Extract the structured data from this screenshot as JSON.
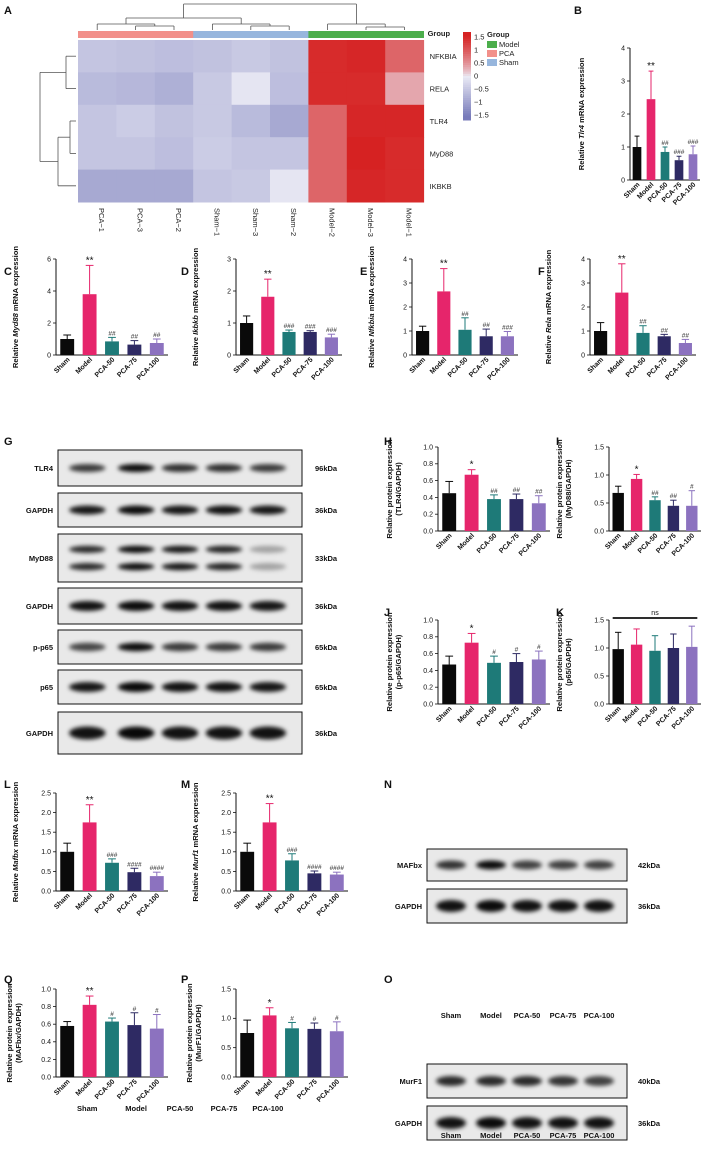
{
  "colors": {
    "sham": "#0a0a0a",
    "model": "#e6256b",
    "pca50": "#1e7a78",
    "pca75": "#2e2a63",
    "pca100": "#8c72bf",
    "hm_model": "#4cae4c",
    "hm_pca": "#f2908a",
    "hm_sham": "#97b6dd"
  },
  "chart_data": [
    {
      "panel": "A",
      "type": "heatmap",
      "columns": [
        "PCA−1",
        "PCA−3",
        "PCA−2",
        "Sham−1",
        "Sham−3",
        "Sham−2",
        "Model−2",
        "Model−3",
        "Model−1"
      ],
      "column_groups": [
        "PCA",
        "PCA",
        "PCA",
        "Sham",
        "Sham",
        "Sham",
        "Model",
        "Model",
        "Model"
      ],
      "rows": [
        "NFKBIA",
        "RELA",
        "TLR4",
        "MyD88",
        "IKBKB"
      ],
      "values": [
        [
          -0.55,
          -0.6,
          -0.65,
          -0.6,
          -0.5,
          -0.6,
          1.5,
          1.55,
          0.9
        ],
        [
          -0.7,
          -0.75,
          -0.85,
          -0.5,
          -0.1,
          -0.65,
          1.5,
          1.5,
          0.35
        ],
        [
          -0.55,
          -0.45,
          -0.6,
          -0.5,
          -0.7,
          -0.95,
          0.9,
          1.55,
          1.55
        ],
        [
          -0.55,
          -0.55,
          -0.65,
          -0.45,
          -0.55,
          -0.55,
          0.9,
          1.6,
          1.5
        ],
        [
          -0.95,
          -0.95,
          -0.95,
          -0.55,
          -0.5,
          -0.1,
          0.9,
          1.55,
          1.5
        ]
      ],
      "legend_title": "Group",
      "legend_items": [
        "Model",
        "PCA",
        "Sham"
      ],
      "colorbar_ticks": [
        "1.5",
        "1",
        "0.5",
        "0",
        "−0.5",
        "−1",
        "−1.5"
      ]
    },
    {
      "panel": "B",
      "type": "bar",
      "ylabel_pre": "Relative ",
      "ylabel_gene": "Tlr4",
      "ylabel_post": " mRNA expression",
      "categories": [
        "Sham",
        "Model",
        "PCA-50",
        "PCA-75",
        "PCA-100"
      ],
      "values": [
        1.0,
        2.45,
        0.85,
        0.6,
        0.78
      ],
      "errors": [
        0.33,
        0.85,
        0.15,
        0.12,
        0.25
      ],
      "ylim": [
        0,
        4
      ],
      "yticks": [
        "0",
        "1",
        "2",
        "3",
        "4"
      ],
      "sig": [
        "",
        "**",
        "##",
        "###",
        "###"
      ]
    },
    {
      "panel": "C",
      "type": "bar",
      "ylabel_pre": "Relative ",
      "ylabel_gene": "Myd88",
      "ylabel_post": " mRNA expression",
      "categories": [
        "Sham",
        "Model",
        "PCA-50",
        "PCA-75",
        "PCA-100"
      ],
      "values": [
        1.0,
        3.8,
        0.85,
        0.65,
        0.75
      ],
      "errors": [
        0.25,
        1.8,
        0.25,
        0.25,
        0.25
      ],
      "ylim": [
        0,
        6
      ],
      "yticks": [
        "0",
        "2",
        "4",
        "6"
      ],
      "sig": [
        "",
        "**",
        "##",
        "##",
        "##"
      ]
    },
    {
      "panel": "D",
      "type": "bar",
      "ylabel_pre": "Relative ",
      "ylabel_gene": "Ikbkb",
      "ylabel_post": " mRNA expression",
      "categories": [
        "Sham",
        "Model",
        "PCA-50",
        "PCA-75",
        "PCA-100"
      ],
      "values": [
        1.0,
        1.82,
        0.72,
        0.72,
        0.55
      ],
      "errors": [
        0.22,
        0.55,
        0.06,
        0.04,
        0.1
      ],
      "ylim": [
        0,
        3
      ],
      "yticks": [
        "0",
        "1",
        "2",
        "3"
      ],
      "sig": [
        "",
        "**",
        "###",
        "###",
        "###"
      ]
    },
    {
      "panel": "E",
      "type": "bar",
      "ylabel_pre": "Relative ",
      "ylabel_gene": "Nfkbia",
      "ylabel_post": " mRNA expression",
      "categories": [
        "Sham",
        "Model",
        "PCA-50",
        "PCA-75",
        "PCA-100"
      ],
      "values": [
        1.0,
        2.65,
        1.05,
        0.78,
        0.78
      ],
      "errors": [
        0.2,
        0.95,
        0.5,
        0.3,
        0.2
      ],
      "ylim": [
        0,
        4
      ],
      "yticks": [
        "0",
        "1",
        "2",
        "3",
        "4"
      ],
      "sig": [
        "",
        "**",
        "##",
        "##",
        "###"
      ]
    },
    {
      "panel": "F",
      "type": "bar",
      "ylabel_pre": "Relative ",
      "ylabel_gene": "Rela",
      "ylabel_post": " mRNA expression",
      "categories": [
        "Sham",
        "Model",
        "PCA-50",
        "PCA-75",
        "PCA-100"
      ],
      "values": [
        1.0,
        2.6,
        0.92,
        0.78,
        0.5
      ],
      "errors": [
        0.35,
        1.2,
        0.3,
        0.08,
        0.15
      ],
      "ylim": [
        0,
        4
      ],
      "yticks": [
        "0",
        "1",
        "2",
        "3",
        "4"
      ],
      "sig": [
        "",
        "**",
        "##",
        "##",
        "##"
      ]
    },
    {
      "panel": "H",
      "type": "bar",
      "ylabel_pre": "Relative protein expression",
      "ylabel_line2": "(TLR4/GAPDH)",
      "categories": [
        "Sham",
        "Model",
        "PCA-50",
        "PCA-75",
        "PCA-100"
      ],
      "values": [
        0.45,
        0.67,
        0.38,
        0.38,
        0.33
      ],
      "errors": [
        0.14,
        0.06,
        0.05,
        0.06,
        0.09
      ],
      "ylim": [
        0,
        1.0
      ],
      "yticks": [
        "0.0",
        "0.2",
        "0.4",
        "0.6",
        "0.8",
        "1.0"
      ],
      "sig": [
        "",
        "*",
        "##",
        "##",
        "##"
      ]
    },
    {
      "panel": "I",
      "type": "bar",
      "ylabel_pre": "Relative protein expression",
      "ylabel_line2": "(MyD88/GAPDH)",
      "categories": [
        "Sham",
        "Model",
        "PCA-50",
        "PCA-75",
        "PCA-100"
      ],
      "values": [
        0.68,
        0.93,
        0.55,
        0.45,
        0.45
      ],
      "errors": [
        0.12,
        0.08,
        0.06,
        0.1,
        0.27
      ],
      "ylim": [
        0,
        1.5
      ],
      "yticks": [
        "0.0",
        "0.5",
        "1.0",
        "1.5"
      ],
      "sig": [
        "",
        "*",
        "##",
        "##",
        "#"
      ]
    },
    {
      "panel": "J",
      "type": "bar",
      "ylabel_pre": "Relative protein expression",
      "ylabel_line2": "(p-p65/GAPDH)",
      "categories": [
        "Sham",
        "Model",
        "PCA-50",
        "PCA-75",
        "PCA-100"
      ],
      "values": [
        0.47,
        0.73,
        0.49,
        0.5,
        0.53
      ],
      "errors": [
        0.1,
        0.11,
        0.08,
        0.1,
        0.1
      ],
      "ylim": [
        0,
        1.0
      ],
      "yticks": [
        "0.0",
        "0.2",
        "0.4",
        "0.6",
        "0.8",
        "1.0"
      ],
      "sig": [
        "",
        "*",
        "#",
        "#",
        "#"
      ]
    },
    {
      "panel": "K",
      "type": "bar",
      "ylabel_pre": "Relative protein expression",
      "ylabel_line2": "(p65/GAPDH)",
      "categories": [
        "Sham",
        "Model",
        "PCA-50",
        "PCA-75",
        "PCA-100"
      ],
      "values": [
        0.98,
        1.06,
        0.95,
        1.0,
        1.02
      ],
      "errors": [
        0.3,
        0.28,
        0.27,
        0.25,
        0.37
      ],
      "ylim": [
        0,
        1.5
      ],
      "yticks": [
        "0.0",
        "0.5",
        "1.0",
        "1.5"
      ],
      "sig": [
        "",
        "",
        "",
        "",
        ""
      ],
      "ns_label": "ns"
    },
    {
      "panel": "L",
      "type": "bar",
      "ylabel_pre": "Relative ",
      "ylabel_gene": "Mafbx",
      "ylabel_post": " mRNA expression",
      "categories": [
        "Sham",
        "Model",
        "PCA-50",
        "PCA-75",
        "PCA-100"
      ],
      "values": [
        1.0,
        1.75,
        0.72,
        0.48,
        0.38
      ],
      "errors": [
        0.22,
        0.45,
        0.1,
        0.1,
        0.1
      ],
      "ylim": [
        0,
        2.5
      ],
      "yticks": [
        "0.0",
        "0.5",
        "1.0",
        "1.5",
        "2.0",
        "2.5"
      ],
      "sig": [
        "",
        "**",
        "###",
        "####",
        "####"
      ]
    },
    {
      "panel": "M",
      "type": "bar",
      "ylabel_pre": "Relative ",
      "ylabel_gene": "Murf1",
      "ylabel_post": " mRNA expression",
      "categories": [
        "Sham",
        "Model",
        "PCA-50",
        "PCA-75",
        "PCA-100"
      ],
      "values": [
        1.0,
        1.75,
        0.78,
        0.45,
        0.42
      ],
      "errors": [
        0.22,
        0.48,
        0.17,
        0.06,
        0.06
      ],
      "ylim": [
        0,
        2.5
      ],
      "yticks": [
        "0.0",
        "0.5",
        "1.0",
        "1.5",
        "2.0",
        "2.5"
      ],
      "sig": [
        "",
        "**",
        "###",
        "####",
        "####"
      ]
    },
    {
      "panel": "Q",
      "type": "bar",
      "ylabel_pre": "Relative protein expression",
      "ylabel_line2": "(MAFbx/GAPDH)",
      "categories": [
        "Sham",
        "Model",
        "PCA-50",
        "PCA-75",
        "PCA-100"
      ],
      "values": [
        0.58,
        0.82,
        0.63,
        0.59,
        0.55
      ],
      "errors": [
        0.05,
        0.1,
        0.04,
        0.14,
        0.16
      ],
      "ylim": [
        0,
        1.0
      ],
      "yticks": [
        "0.0",
        "0.2",
        "0.4",
        "0.6",
        "0.8",
        "1.0"
      ],
      "sig": [
        "",
        "**",
        "#",
        "#",
        "#"
      ]
    },
    {
      "panel": "P",
      "type": "bar",
      "ylabel_pre": "Relative protein expression",
      "ylabel_line2": "(MurF1/GAPDH)",
      "categories": [
        "Sham",
        "Model",
        "PCA-50",
        "PCA-75",
        "PCA-100"
      ],
      "values": [
        0.75,
        1.05,
        0.83,
        0.82,
        0.78
      ],
      "errors": [
        0.22,
        0.13,
        0.1,
        0.1,
        0.16
      ],
      "ylim": [
        0,
        1.5
      ],
      "yticks": [
        "0.0",
        "0.5",
        "1.0",
        "1.5"
      ],
      "sig": [
        "",
        "*",
        "#",
        "#",
        "#"
      ]
    }
  ],
  "blots": {
    "G": {
      "rows": [
        {
          "name": "TLR4",
          "kda": "96kDa"
        },
        {
          "name": "GAPDH",
          "kda": "36kDa"
        },
        {
          "name": "MyD88",
          "kda": "33kDa"
        },
        {
          "name": "GAPDH",
          "kda": "36kDa"
        },
        {
          "name": "p-p65",
          "kda": "65kDa"
        },
        {
          "name": "p65",
          "kda": "65kDa"
        },
        {
          "name": "GAPDH",
          "kda": "36kDa"
        }
      ],
      "lanes": [
        "Sham",
        "Model",
        "PCA-50",
        "PCA-75",
        "PCA-100"
      ]
    },
    "N": {
      "rows": [
        {
          "name": "MAFbx",
          "kda": "42kDa"
        },
        {
          "name": "GAPDH",
          "kda": "36kDa"
        }
      ],
      "lanes": [
        "Sham",
        "Model",
        "PCA-50",
        "PCA-75",
        "PCA-100"
      ]
    },
    "O": {
      "rows": [
        {
          "name": "MurF1",
          "kda": "40kDa"
        },
        {
          "name": "GAPDH",
          "kda": "36kDa"
        }
      ],
      "lanes": [
        "Sham",
        "Model",
        "PCA-50",
        "PCA-75",
        "PCA-100"
      ]
    }
  }
}
